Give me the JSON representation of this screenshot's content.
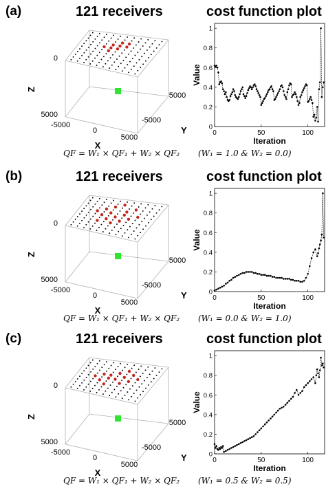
{
  "panels": [
    {
      "label": "(a)",
      "title3d": "121 receivers",
      "title_cf": "cost function plot",
      "axes3d": {
        "z_label": "Z",
        "x_label": "X",
        "y_label": "Y",
        "z_ticks": [
          "0",
          "5000"
        ],
        "x_ticks": [
          "-5000",
          "0",
          "5000"
        ],
        "y_ticks": [
          "5000",
          "-5000"
        ]
      },
      "formula": "QF = W₁ × QF₁ + W₂ × QF₂",
      "weights": "(W₁ = 1.0 & W₂ = 0.0)",
      "highlight": [
        [
          5,
          2
        ],
        [
          6,
          2
        ],
        [
          4,
          3
        ],
        [
          5,
          3
        ],
        [
          6,
          3
        ],
        [
          3,
          4
        ],
        [
          4,
          4
        ],
        [
          5,
          4
        ],
        [
          4,
          5
        ]
      ],
      "chart_data": {
        "type": "line",
        "title": "cost function plot",
        "xlabel": "Iteration",
        "ylabel": "Value",
        "xlim": [
          0,
          118
        ],
        "ylim": [
          0,
          1.05
        ],
        "xticks": [
          0,
          50,
          100
        ],
        "yticks": [
          0,
          0.2,
          0.4,
          0.6,
          0.8,
          1
        ],
        "x": [
          0,
          1,
          2,
          3,
          4,
          5,
          6,
          7,
          8,
          9,
          10,
          11,
          12,
          13,
          14,
          15,
          16,
          17,
          18,
          19,
          20,
          21,
          22,
          23,
          24,
          25,
          26,
          27,
          28,
          29,
          30,
          31,
          32,
          33,
          34,
          35,
          36,
          37,
          38,
          39,
          40,
          41,
          42,
          43,
          44,
          45,
          46,
          47,
          48,
          49,
          50,
          51,
          52,
          53,
          54,
          55,
          56,
          57,
          58,
          59,
          60,
          61,
          62,
          63,
          64,
          65,
          66,
          67,
          68,
          69,
          70,
          71,
          72,
          73,
          74,
          75,
          76,
          77,
          78,
          79,
          80,
          81,
          82,
          83,
          84,
          85,
          86,
          87,
          88,
          89,
          90,
          91,
          92,
          93,
          94,
          95,
          96,
          97,
          98,
          99,
          100,
          101,
          102,
          103,
          104,
          105,
          106,
          107,
          108,
          109,
          110,
          111,
          112,
          113,
          114,
          115,
          116,
          117
        ],
        "y": [
          0.62,
          0.61,
          0.62,
          0.6,
          0.55,
          0.43,
          0.45,
          0.46,
          0.44,
          0.38,
          0.36,
          0.33,
          0.35,
          0.3,
          0.27,
          0.26,
          0.27,
          0.31,
          0.33,
          0.35,
          0.38,
          0.36,
          0.32,
          0.3,
          0.29,
          0.28,
          0.3,
          0.33,
          0.36,
          0.38,
          0.4,
          0.33,
          0.31,
          0.29,
          0.31,
          0.34,
          0.37,
          0.39,
          0.41,
          0.4,
          0.38,
          0.4,
          0.42,
          0.43,
          0.41,
          0.38,
          0.36,
          0.34,
          0.32,
          0.3,
          0.22,
          0.24,
          0.26,
          0.28,
          0.29,
          0.31,
          0.33,
          0.35,
          0.37,
          0.38,
          0.4,
          0.41,
          0.38,
          0.36,
          0.27,
          0.28,
          0.3,
          0.32,
          0.34,
          0.36,
          0.38,
          0.41,
          0.42,
          0.4,
          0.36,
          0.32,
          0.3,
          0.28,
          0.35,
          0.38,
          0.42,
          0.44,
          0.43,
          0.3,
          0.32,
          0.33,
          0.35,
          0.33,
          0.3,
          0.26,
          0.22,
          0.24,
          0.3,
          0.32,
          0.35,
          0.37,
          0.39,
          0.41,
          0.43,
          0.42,
          0.25,
          0.26,
          0.28,
          0.3,
          0.27,
          0.24,
          0.1,
          0.12,
          0.06,
          0.09,
          0.2,
          0.05,
          0.38,
          0.45,
          1.0,
          0.3,
          0.4,
          0.45
        ]
      }
    },
    {
      "label": "(b)",
      "title3d": "121 receivers",
      "title_cf": "cost function plot",
      "axes3d": {
        "z_label": "Z",
        "x_label": "X",
        "y_label": "Y",
        "z_ticks": [
          "0",
          "5000"
        ],
        "x_ticks": [
          "-5000",
          "0",
          "5000"
        ],
        "y_ticks": [
          "5000",
          "-5000"
        ]
      },
      "formula": "QF = W₁ × QF₁ + W₂ × QF₂",
      "weights": "(W₁ = 0.0 & W₂ = 1.0)",
      "highlight": [
        [
          5,
          1
        ],
        [
          4,
          2
        ],
        [
          7,
          2
        ],
        [
          3,
          3
        ],
        [
          6,
          3
        ],
        [
          2,
          4
        ],
        [
          4,
          4
        ],
        [
          6,
          4
        ],
        [
          8,
          4
        ],
        [
          3,
          5
        ],
        [
          5,
          5
        ],
        [
          7,
          5
        ],
        [
          4,
          6
        ],
        [
          6,
          6
        ],
        [
          3,
          7
        ],
        [
          5,
          7
        ]
      ],
      "chart_data": {
        "type": "line",
        "title": "cost function plot",
        "xlabel": "Iteration",
        "ylabel": "Value",
        "xlim": [
          0,
          118
        ],
        "ylim": [
          0,
          1.05
        ],
        "xticks": [
          0,
          50,
          100
        ],
        "yticks": [
          0,
          0.2,
          0.4,
          0.6,
          0.8,
          1
        ],
        "x": [
          0,
          2,
          4,
          6,
          8,
          10,
          12,
          14,
          16,
          18,
          20,
          22,
          24,
          26,
          28,
          30,
          32,
          34,
          36,
          38,
          40,
          42,
          44,
          46,
          48,
          50,
          52,
          54,
          56,
          58,
          60,
          62,
          64,
          66,
          68,
          70,
          72,
          74,
          76,
          78,
          80,
          82,
          84,
          86,
          88,
          90,
          92,
          94,
          96,
          98,
          100,
          102,
          104,
          106,
          108,
          110,
          111,
          112,
          113,
          114,
          115,
          116,
          117
        ],
        "y": [
          0.01,
          0.02,
          0.03,
          0.04,
          0.05,
          0.06,
          0.08,
          0.09,
          0.11,
          0.12,
          0.14,
          0.15,
          0.16,
          0.17,
          0.18,
          0.19,
          0.19,
          0.2,
          0.2,
          0.2,
          0.2,
          0.19,
          0.19,
          0.18,
          0.18,
          0.17,
          0.17,
          0.17,
          0.16,
          0.16,
          0.16,
          0.15,
          0.15,
          0.14,
          0.14,
          0.14,
          0.14,
          0.13,
          0.13,
          0.13,
          0.13,
          0.12,
          0.12,
          0.11,
          0.11,
          0.11,
          0.1,
          0.1,
          0.11,
          0.14,
          0.18,
          0.26,
          0.34,
          0.4,
          0.43,
          0.36,
          0.39,
          0.44,
          0.48,
          0.52,
          0.58,
          1.0,
          0.55
        ]
      }
    },
    {
      "label": "(c)",
      "title3d": "121 receivers",
      "title_cf": "cost function plot",
      "axes3d": {
        "z_label": "Z",
        "x_label": "X",
        "y_label": "Y",
        "z_ticks": [
          "0",
          "5000"
        ],
        "x_ticks": [
          "-5000",
          "0",
          "5000"
        ],
        "y_ticks": [
          "5000",
          "-5000"
        ]
      },
      "formula": "QF = W₁ × QF₁ + W₂ × QF₂",
      "weights": "(W₁ = 0.5 & W₂ = 0.5)",
      "highlight": [
        [
          6,
          2
        ],
        [
          5,
          3
        ],
        [
          7,
          3
        ],
        [
          3,
          4
        ],
        [
          4,
          4
        ],
        [
          6,
          4
        ],
        [
          8,
          4
        ],
        [
          2,
          5
        ],
        [
          4,
          5
        ],
        [
          5,
          5
        ],
        [
          7,
          5
        ],
        [
          3,
          6
        ],
        [
          6,
          6
        ],
        [
          4,
          7
        ]
      ],
      "chart_data": {
        "type": "line",
        "title": "cost function plot",
        "xlabel": "Iteration",
        "ylabel": "Value",
        "xlim": [
          0,
          118
        ],
        "ylim": [
          0,
          1.05
        ],
        "xticks": [
          0,
          50,
          100
        ],
        "yticks": [
          0,
          0.2,
          0.4,
          0.6,
          0.8,
          1
        ],
        "x": [
          0,
          1,
          2,
          3,
          4,
          5,
          6,
          7,
          8,
          9,
          10,
          12,
          14,
          16,
          18,
          20,
          22,
          24,
          26,
          28,
          30,
          32,
          34,
          36,
          38,
          40,
          42,
          44,
          46,
          48,
          50,
          52,
          54,
          56,
          58,
          60,
          62,
          64,
          66,
          68,
          70,
          72,
          74,
          76,
          78,
          80,
          82,
          84,
          86,
          88,
          90,
          92,
          94,
          96,
          98,
          100,
          102,
          104,
          106,
          108,
          109,
          110,
          111,
          112,
          113,
          114,
          115,
          116,
          117
        ],
        "y": [
          0.1,
          0.06,
          0.08,
          0.05,
          0.04,
          0.06,
          0.05,
          0.07,
          0.06,
          0.08,
          0.02,
          0.03,
          0.04,
          0.05,
          0.06,
          0.07,
          0.08,
          0.09,
          0.1,
          0.11,
          0.12,
          0.13,
          0.14,
          0.15,
          0.16,
          0.17,
          0.18,
          0.2,
          0.22,
          0.24,
          0.26,
          0.28,
          0.3,
          0.32,
          0.34,
          0.36,
          0.38,
          0.4,
          0.42,
          0.44,
          0.46,
          0.47,
          0.48,
          0.5,
          0.52,
          0.54,
          0.56,
          0.58,
          0.62,
          0.65,
          0.6,
          0.62,
          0.64,
          0.68,
          0.7,
          0.72,
          0.74,
          0.76,
          0.78,
          0.72,
          0.8,
          0.86,
          0.82,
          0.78,
          0.85,
          0.98,
          0.9,
          0.92,
          0.88
        ]
      }
    }
  ],
  "colors": {
    "receiver": "#000000",
    "highlight": "#c0281e",
    "source": "#2ee62e",
    "box": "#b0b0b0",
    "line": "#000000"
  }
}
